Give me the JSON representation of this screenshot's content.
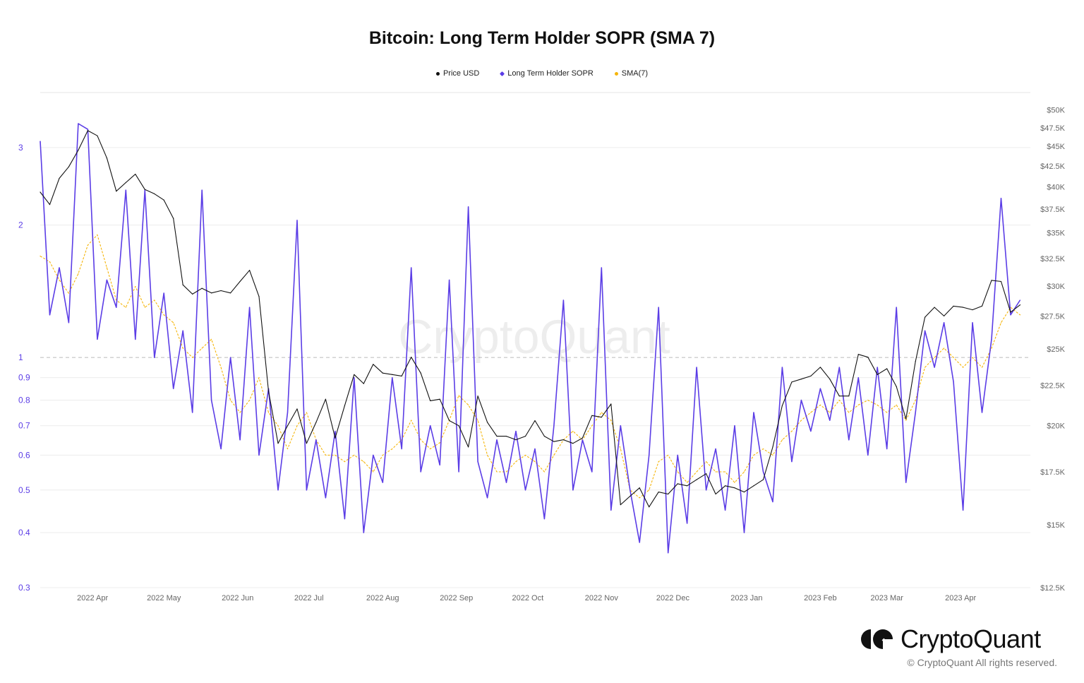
{
  "chart_data": {
    "type": "line",
    "title": "Bitcoin: Long Term Holder SOPR (SMA 7)",
    "legend": [
      "Price USD",
      "Long Term Holder SOPR",
      "SMA(7)"
    ],
    "legend_position": "top-center",
    "colors": {
      "price": "#111111",
      "sopr": "#5b3de6",
      "sma": "#f5b50a",
      "left_axis": "#5b3de6",
      "right_axis": "#666666"
    },
    "start_date": "2022-03-10",
    "interval_days": 4,
    "x_ticks": [
      "2022 Apr",
      "2022 May",
      "2022 Jun",
      "2022 Jul",
      "2022 Aug",
      "2022 Sep",
      "2022 Oct",
      "2022 Nov",
      "2022 Dec",
      "2023 Jan",
      "2023 Feb",
      "2023 Mar",
      "2023 Apr"
    ],
    "x_tick_days": [
      22,
      52,
      83,
      113,
      144,
      175,
      205,
      236,
      266,
      297,
      328,
      356,
      387
    ],
    "left_axis": {
      "scale": "log",
      "range": [
        0.3,
        4.0
      ],
      "ticks": [
        0.3,
        0.4,
        0.5,
        0.6,
        0.7,
        0.8,
        0.9,
        1,
        2,
        3
      ],
      "tick_labels": [
        "0.3",
        "0.4",
        "0.5",
        "0.6",
        "0.7",
        "0.8",
        "0.9",
        "1",
        "2",
        "3"
      ],
      "reference_line": 1
    },
    "right_axis": {
      "scale": "log",
      "range": [
        12.5,
        52.6
      ],
      "ticks": [
        12.5,
        15,
        17.5,
        20,
        22.5,
        25,
        27.5,
        30,
        32.5,
        35,
        37.5,
        40,
        42.5,
        45,
        47.5,
        50
      ],
      "tick_labels": [
        "$12.5K",
        "$15K",
        "$17.5K",
        "$20K",
        "$22.5K",
        "$25K",
        "$27.5K",
        "$30K",
        "$32.5K",
        "$35K",
        "$37.5K",
        "$40K",
        "$42.5K",
        "$45K",
        "$47.5K",
        "$50K"
      ]
    },
    "series": [
      {
        "name": "Price USD",
        "axis": "right",
        "unit": "K USD",
        "values": [
          39.4,
          38.0,
          41.0,
          42.4,
          44.5,
          47.1,
          46.4,
          43.5,
          39.5,
          40.5,
          41.5,
          39.7,
          39.2,
          38.5,
          36.5,
          30.1,
          29.3,
          29.8,
          29.4,
          29.6,
          29.4,
          30.4,
          31.4,
          29.1,
          22.1,
          19.0,
          20.0,
          21.0,
          19.0,
          20.2,
          21.6,
          19.3,
          21.2,
          23.2,
          22.6,
          23.9,
          23.3,
          23.2,
          23.1,
          24.4,
          23.3,
          21.5,
          21.6,
          20.3,
          20.0,
          18.8,
          21.8,
          20.2,
          19.4,
          19.4,
          19.2,
          19.4,
          20.3,
          19.4,
          19.1,
          19.2,
          19.0,
          19.3,
          20.6,
          20.5,
          21.3,
          15.9,
          16.3,
          16.7,
          15.8,
          16.5,
          16.4,
          16.9,
          16.8,
          17.1,
          17.4,
          16.4,
          16.8,
          16.7,
          16.5,
          16.8,
          17.1,
          18.8,
          21.2,
          22.7,
          22.9,
          23.1,
          23.7,
          22.9,
          21.8,
          21.8,
          24.6,
          24.4,
          23.2,
          23.6,
          22.4,
          20.4,
          24.1,
          27.4,
          28.2,
          27.5,
          28.3,
          28.2,
          28.0,
          28.3,
          30.5,
          30.4,
          27.8,
          28.4
        ]
      },
      {
        "name": "Long Term Holder SOPR",
        "axis": "left",
        "values": [
          3.1,
          1.25,
          1.6,
          1.2,
          3.4,
          3.3,
          1.1,
          1.5,
          1.3,
          2.4,
          1.1,
          2.4,
          1.0,
          1.4,
          0.85,
          1.15,
          0.75,
          2.4,
          0.8,
          0.62,
          1.0,
          0.65,
          1.3,
          0.6,
          0.85,
          0.5,
          0.75,
          2.05,
          0.5,
          0.65,
          0.48,
          0.68,
          0.43,
          0.9,
          0.4,
          0.6,
          0.52,
          0.9,
          0.62,
          1.6,
          0.55,
          0.7,
          0.57,
          1.5,
          0.55,
          2.2,
          0.58,
          0.48,
          0.65,
          0.52,
          0.68,
          0.5,
          0.62,
          0.43,
          0.7,
          1.35,
          0.5,
          0.65,
          0.55,
          1.6,
          0.45,
          0.7,
          0.5,
          0.38,
          0.6,
          1.3,
          0.36,
          0.6,
          0.42,
          0.95,
          0.5,
          0.62,
          0.45,
          0.7,
          0.4,
          0.75,
          0.55,
          0.47,
          0.95,
          0.58,
          0.8,
          0.68,
          0.85,
          0.72,
          0.95,
          0.65,
          0.9,
          0.6,
          0.95,
          0.62,
          1.3,
          0.52,
          0.75,
          1.15,
          0.95,
          1.2,
          0.88,
          0.45,
          1.2,
          0.75,
          1.1,
          2.3,
          1.25,
          1.35
        ]
      },
      {
        "name": "SMA(7)",
        "axis": "left",
        "values": [
          1.7,
          1.65,
          1.5,
          1.4,
          1.55,
          1.8,
          1.9,
          1.6,
          1.35,
          1.3,
          1.45,
          1.3,
          1.35,
          1.25,
          1.2,
          1.05,
          1.0,
          1.05,
          1.1,
          0.95,
          0.8,
          0.75,
          0.8,
          0.9,
          0.75,
          0.7,
          0.62,
          0.7,
          0.75,
          0.65,
          0.6,
          0.6,
          0.58,
          0.6,
          0.58,
          0.55,
          0.6,
          0.62,
          0.65,
          0.72,
          0.65,
          0.62,
          0.64,
          0.72,
          0.82,
          0.78,
          0.72,
          0.6,
          0.55,
          0.55,
          0.58,
          0.6,
          0.58,
          0.55,
          0.6,
          0.65,
          0.68,
          0.65,
          0.7,
          0.75,
          0.72,
          0.62,
          0.5,
          0.48,
          0.5,
          0.58,
          0.6,
          0.55,
          0.52,
          0.55,
          0.58,
          0.55,
          0.55,
          0.52,
          0.55,
          0.6,
          0.62,
          0.6,
          0.65,
          0.68,
          0.72,
          0.75,
          0.78,
          0.75,
          0.8,
          0.75,
          0.78,
          0.8,
          0.78,
          0.75,
          0.78,
          0.72,
          0.8,
          0.95,
          1.0,
          1.05,
          1.0,
          0.95,
          1.0,
          0.95,
          1.05,
          1.2,
          1.3,
          1.25
        ]
      }
    ],
    "watermark": "CryptoQuant"
  },
  "footer": {
    "brand": "CryptoQuant",
    "copyright": "© CryptoQuant All rights reserved."
  }
}
